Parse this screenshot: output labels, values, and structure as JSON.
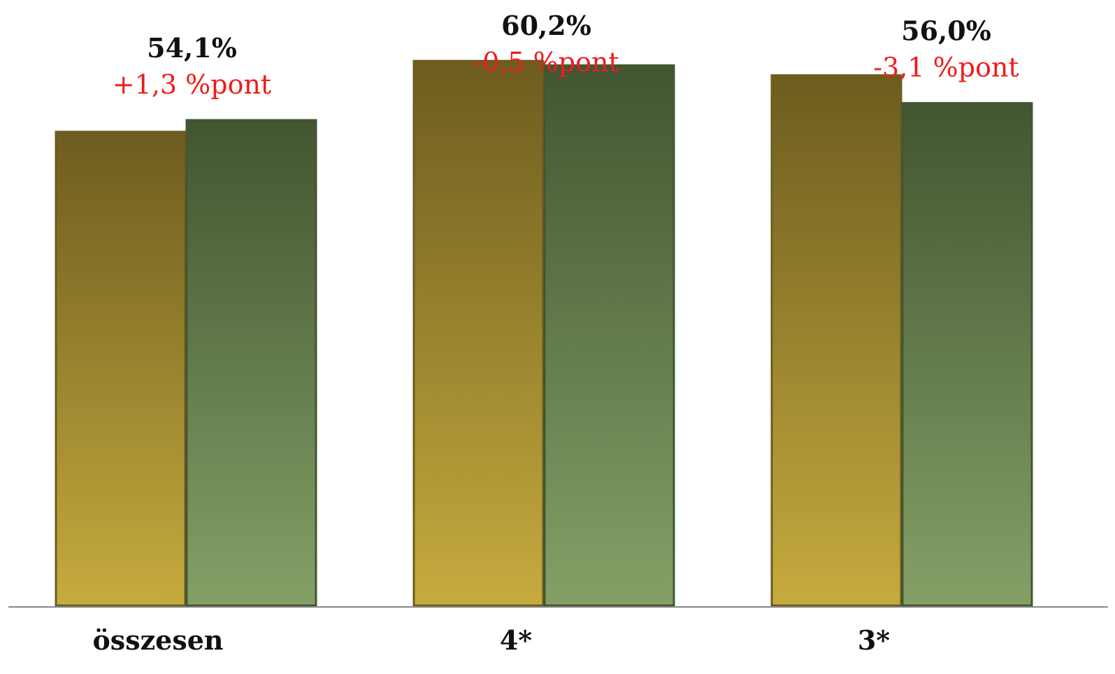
{
  "chart_data": {
    "type": "bar",
    "categories": [
      "összesen",
      "4*",
      "3*"
    ],
    "series": [
      {
        "values": [
          52.8,
          60.7,
          59.1
        ]
      },
      {
        "values": [
          54.1,
          60.2,
          56.0
        ]
      }
    ],
    "value_labels": [
      "54,1%",
      "60,2%",
      "56,0%"
    ],
    "delta_labels": [
      "+1,3 %pont",
      "-0,5 %pont",
      "-3,1 %pont"
    ],
    "ylim": [
      0,
      65
    ],
    "grid": false,
    "legend": "none",
    "colors": {
      "series_1_top": "#6d5c1f",
      "series_1_bottom": "#c6ab3e",
      "series_2_top": "#435531",
      "series_2_bottom": "#84a066",
      "delta_text": "#ee1c1c",
      "value_text": "#111111",
      "axis": "#888888"
    }
  }
}
